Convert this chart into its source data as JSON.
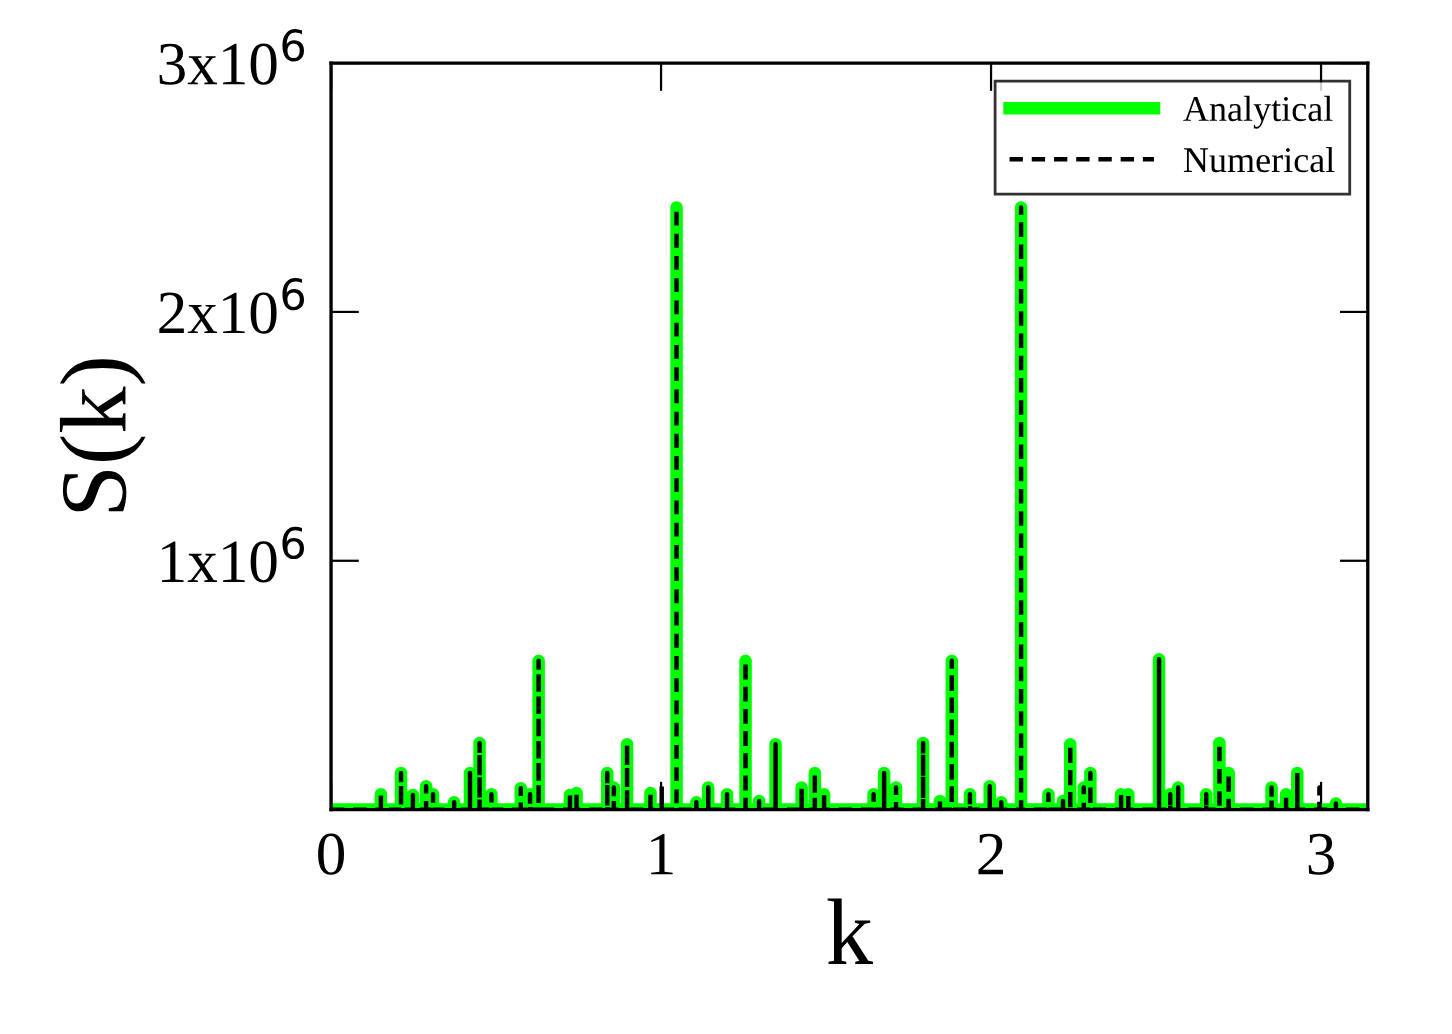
{
  "chart_data": {
    "type": "line",
    "xlabel": "k",
    "ylabel": "S(k)",
    "xlim": [
      0,
      3.1416
    ],
    "xticks": [
      0,
      1,
      2,
      3
    ],
    "ylim": [
      0,
      3000000
    ],
    "yticks": [
      {
        "value": 1000000,
        "label": "1x10$^{6}$"
      },
      {
        "value": 2000000,
        "label": "2x10$^{6}$"
      },
      {
        "value": 3000000,
        "label": "3x10$^{6}$"
      }
    ],
    "grid": false,
    "legend": "top right",
    "marker": "none",
    "series": [
      {
        "name": "Analytical",
        "color": "#00ff00",
        "line_style": "solid",
        "x": [
          0,
          0.151,
          0.151,
          0.151,
          0.212,
          0.212,
          0.212,
          0.248,
          0.248,
          0.248,
          0.288,
          0.288,
          0.288,
          0.309,
          0.309,
          0.309,
          0.373,
          0.373,
          0.373,
          0.421,
          0.421,
          0.421,
          0.45,
          0.45,
          0.45,
          0.486,
          0.486,
          0.486,
          0.575,
          0.575,
          0.575,
          0.603,
          0.603,
          0.603,
          0.629,
          0.629,
          0.629,
          0.724,
          0.724,
          0.724,
          0.744,
          0.744,
          0.744,
          0.837,
          0.837,
          0.837,
          0.857,
          0.857,
          0.857,
          0.897,
          0.897,
          0.897,
          0.968,
          0.968,
          0.968,
          1.047,
          1.047,
          1.047,
          1.107,
          1.107,
          1.107,
          1.143,
          1.143,
          1.143,
          1.2,
          1.2,
          1.2,
          1.256,
          1.256,
          1.256,
          1.297,
          1.297,
          1.297,
          1.347,
          1.347,
          1.347,
          1.426,
          1.426,
          1.426,
          1.466,
          1.466,
          1.466,
          1.494,
          1.494,
          1.494,
          1.644,
          1.644,
          1.644,
          1.676,
          1.676,
          1.676,
          1.712,
          1.712,
          1.712,
          1.794,
          1.794,
          1.794,
          1.845,
          1.845,
          1.845,
          1.881,
          1.881,
          1.881,
          1.936,
          1.936,
          1.936,
          1.996,
          1.996,
          1.996,
          2.031,
          2.031,
          2.031,
          2.091,
          2.091,
          2.091,
          2.174,
          2.174,
          2.174,
          2.218,
          2.218,
          2.218,
          2.24,
          2.24,
          2.24,
          2.281,
          2.281,
          2.281,
          2.301,
          2.301,
          2.301,
          2.394,
          2.394,
          2.394,
          2.416,
          2.416,
          2.416,
          2.509,
          2.509,
          2.509,
          2.543,
          2.543,
          2.543,
          2.567,
          2.567,
          2.567,
          2.652,
          2.652,
          2.652,
          2.692,
          2.692,
          2.692,
          2.72,
          2.72,
          2.72,
          2.85,
          2.85,
          2.85,
          2.894,
          2.894,
          2.894,
          2.928,
          2.928,
          2.928,
          3.045,
          3.045,
          3.045,
          3.1416
        ],
        "values": [
          0,
          0,
          62000,
          0,
          0,
          147000,
          0,
          0,
          59000,
          0,
          0,
          94000,
          0,
          0,
          62000,
          0,
          0,
          30000,
          0,
          0,
          147000,
          0,
          0,
          268000,
          0,
          0,
          62000,
          0,
          0,
          86000,
          0,
          0,
          62000,
          0,
          0,
          598000,
          0,
          0,
          59000,
          0,
          0,
          67000,
          0,
          0,
          147000,
          0,
          0,
          89000,
          0,
          0,
          263000,
          0,
          0,
          67000,
          0,
          0,
          2420000,
          0,
          0,
          30000,
          0,
          0,
          89000,
          0,
          0,
          62000,
          0,
          0,
          598000,
          0,
          0,
          35000,
          0,
          0,
          263000,
          0,
          0,
          89000,
          0,
          0,
          147000,
          0,
          0,
          62000,
          0,
          0,
          62000,
          0,
          0,
          147000,
          0,
          0,
          89000,
          0,
          0,
          268000,
          0,
          0,
          35000,
          0,
          0,
          598000,
          0,
          0,
          62000,
          0,
          0,
          94000,
          0,
          0,
          30000,
          0,
          0,
          2420000,
          0,
          0,
          62000,
          0,
          0,
          35000,
          0,
          0,
          263000,
          0,
          0,
          89000,
          0,
          0,
          147000,
          0,
          0,
          62000,
          0,
          0,
          62000,
          0,
          0,
          604000,
          0,
          0,
          62000,
          0,
          0,
          89000,
          0,
          0,
          62000,
          0,
          0,
          268000,
          0,
          0,
          147000,
          0,
          0,
          89000,
          0,
          0,
          62000,
          0,
          0,
          147000,
          0,
          0,
          25000,
          0,
          0
        ]
      },
      {
        "name": "Numerical",
        "color": "#000000",
        "line_style": "dashed",
        "x": [
          0,
          0.151,
          0.151,
          0.151,
          0.212,
          0.212,
          0.212,
          0.248,
          0.248,
          0.248,
          0.288,
          0.288,
          0.288,
          0.309,
          0.309,
          0.309,
          0.373,
          0.373,
          0.373,
          0.421,
          0.421,
          0.421,
          0.45,
          0.45,
          0.45,
          0.486,
          0.486,
          0.486,
          0.575,
          0.575,
          0.575,
          0.603,
          0.603,
          0.603,
          0.629,
          0.629,
          0.629,
          0.724,
          0.724,
          0.724,
          0.744,
          0.744,
          0.744,
          0.837,
          0.837,
          0.837,
          0.857,
          0.857,
          0.857,
          0.897,
          0.897,
          0.897,
          0.968,
          0.968,
          0.968,
          1.002,
          1.002,
          1.002,
          1.047,
          1.047,
          1.047,
          1.107,
          1.107,
          1.107,
          1.143,
          1.143,
          1.143,
          1.2,
          1.2,
          1.2,
          1.256,
          1.256,
          1.256,
          1.297,
          1.297,
          1.297,
          1.347,
          1.347,
          1.347,
          1.426,
          1.426,
          1.426,
          1.466,
          1.466,
          1.466,
          1.494,
          1.494,
          1.494,
          1.644,
          1.644,
          1.644,
          1.676,
          1.676,
          1.676,
          1.712,
          1.712,
          1.712,
          1.794,
          1.794,
          1.794,
          1.845,
          1.845,
          1.845,
          1.881,
          1.881,
          1.881,
          1.936,
          1.936,
          1.936,
          1.996,
          1.996,
          1.996,
          2.031,
          2.031,
          2.031,
          2.091,
          2.091,
          2.091,
          2.174,
          2.174,
          2.174,
          2.218,
          2.218,
          2.218,
          2.24,
          2.24,
          2.24,
          2.281,
          2.281,
          2.281,
          2.301,
          2.301,
          2.301,
          2.394,
          2.394,
          2.394,
          2.416,
          2.416,
          2.416,
          2.509,
          2.509,
          2.509,
          2.543,
          2.543,
          2.543,
          2.567,
          2.567,
          2.567,
          2.652,
          2.652,
          2.652,
          2.692,
          2.692,
          2.692,
          2.72,
          2.72,
          2.72,
          2.85,
          2.85,
          2.85,
          2.894,
          2.894,
          2.894,
          2.928,
          2.928,
          2.928,
          2.995,
          2.995,
          2.995,
          3.045,
          3.045,
          3.045,
          3.1416
        ],
        "values": [
          0,
          0,
          62000,
          0,
          0,
          147000,
          0,
          0,
          59000,
          0,
          0,
          94000,
          0,
          0,
          62000,
          0,
          0,
          30000,
          0,
          0,
          147000,
          0,
          0,
          268000,
          0,
          0,
          62000,
          0,
          0,
          86000,
          0,
          0,
          62000,
          0,
          0,
          598000,
          0,
          0,
          59000,
          0,
          0,
          67000,
          0,
          0,
          147000,
          0,
          0,
          89000,
          0,
          0,
          263000,
          0,
          0,
          67000,
          0,
          0,
          94000,
          0,
          0,
          2420000,
          0,
          0,
          30000,
          0,
          0,
          89000,
          0,
          0,
          62000,
          0,
          0,
          598000,
          0,
          0,
          35000,
          0,
          0,
          263000,
          0,
          0,
          89000,
          0,
          0,
          147000,
          0,
          0,
          62000,
          0,
          0,
          62000,
          0,
          0,
          147000,
          0,
          0,
          89000,
          0,
          0,
          268000,
          0,
          0,
          35000,
          0,
          0,
          598000,
          0,
          0,
          62000,
          0,
          0,
          94000,
          0,
          0,
          30000,
          0,
          0,
          2420000,
          0,
          0,
          62000,
          0,
          0,
          35000,
          0,
          0,
          263000,
          0,
          0,
          89000,
          0,
          0,
          147000,
          0,
          0,
          62000,
          0,
          0,
          62000,
          0,
          0,
          604000,
          0,
          0,
          62000,
          0,
          0,
          89000,
          0,
          0,
          62000,
          0,
          0,
          268000,
          0,
          0,
          147000,
          0,
          0,
          89000,
          0,
          0,
          62000,
          0,
          0,
          147000,
          0,
          0,
          89000,
          0,
          0,
          25000,
          0,
          0
        ]
      }
    ]
  }
}
